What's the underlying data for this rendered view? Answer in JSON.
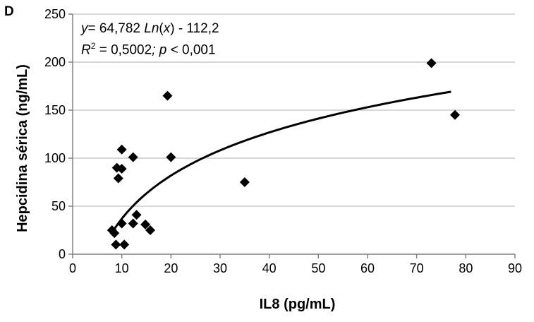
{
  "panel_label": "D",
  "equation": {
    "line1": {
      "y": "y",
      "eq_prefix": "= 64,782 ",
      "ln": "Ln",
      "paren_open": "(",
      "x": "x",
      "paren_close": ")",
      "eq_suffix": " - 112,2"
    },
    "line2": {
      "r": "R",
      "sup": "2",
      "r2_value": " = 0,5002",
      "semicolon": ";",
      "p": " p",
      "p_value": " < 0,001"
    }
  },
  "chart_data": {
    "type": "scatter",
    "xlabel": "IL8 (pg/mL)",
    "ylabel": "Hepcidina sérica (ng/mL)",
    "xlim": [
      0,
      90
    ],
    "ylim": [
      0,
      250
    ],
    "xticks": [
      0,
      10,
      20,
      30,
      40,
      50,
      60,
      70,
      80,
      90
    ],
    "yticks": [
      0,
      50,
      100,
      150,
      200,
      250
    ],
    "grid": "horizontal",
    "marker": "diamond",
    "color": "#000000",
    "points": [
      {
        "x": 8.0,
        "y": 25
      },
      {
        "x": 8.5,
        "y": 22
      },
      {
        "x": 8.8,
        "y": 10
      },
      {
        "x": 9.0,
        "y": 90
      },
      {
        "x": 9.3,
        "y": 79
      },
      {
        "x": 10.0,
        "y": 109
      },
      {
        "x": 10.0,
        "y": 89
      },
      {
        "x": 10.0,
        "y": 32
      },
      {
        "x": 10.5,
        "y": 10
      },
      {
        "x": 12.3,
        "y": 101
      },
      {
        "x": 12.3,
        "y": 32
      },
      {
        "x": 13.0,
        "y": 41
      },
      {
        "x": 14.8,
        "y": 31
      },
      {
        "x": 15.8,
        "y": 25
      },
      {
        "x": 19.3,
        "y": 165
      },
      {
        "x": 20.0,
        "y": 101
      },
      {
        "x": 35.0,
        "y": 75
      },
      {
        "x": 73.0,
        "y": 199
      },
      {
        "x": 77.8,
        "y": 145
      }
    ],
    "trendline": {
      "type": "log",
      "a": 64.782,
      "b": -112.2,
      "x_range": [
        8.5,
        77.0
      ]
    }
  }
}
